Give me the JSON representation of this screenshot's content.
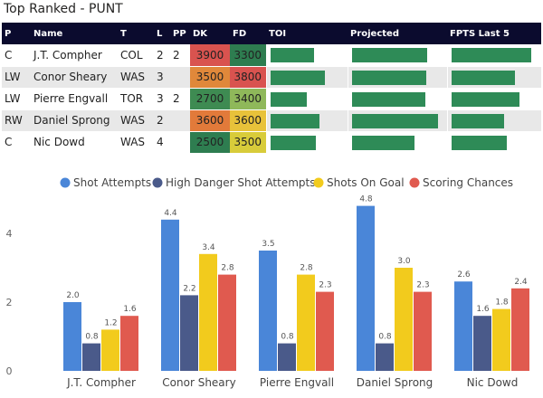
{
  "title": "Top Ranked - PUNT",
  "table": {
    "headers": [
      "P",
      "Name",
      "T",
      "L",
      "PP",
      "DK",
      "FD",
      "TOI",
      "Projected",
      "FPTS Last 5"
    ],
    "rows": [
      {
        "p": "C",
        "name": "J.T. Compher",
        "team": "COL",
        "line": "2",
        "pp": "2",
        "dk": "3900",
        "fd": "3300",
        "dk_color": "#d9534f",
        "fd_color": "#2e7d50",
        "toi": 0.56,
        "projected": 0.78,
        "fpts": 0.88
      },
      {
        "p": "LW",
        "name": "Conor Sheary",
        "team": "WAS",
        "line": "3",
        "pp": "",
        "dk": "3500",
        "fd": "3800",
        "dk_color": "#e0883a",
        "fd_color": "#d9534f",
        "toi": 0.7,
        "projected": 0.77,
        "fpts": 0.7
      },
      {
        "p": "LW",
        "name": "Pierre Engvall",
        "team": "TOR",
        "line": "3",
        "pp": "2",
        "dk": "2700",
        "fd": "3400",
        "dk_color": "#3e8b52",
        "fd_color": "#8fb85a",
        "toi": 0.46,
        "projected": 0.76,
        "fpts": 0.75
      },
      {
        "p": "RW",
        "name": "Daniel Sprong",
        "team": "WAS",
        "line": "2",
        "pp": "",
        "dk": "3600",
        "fd": "3600",
        "dk_color": "#e27a3a",
        "fd_color": "#e8c23a",
        "toi": 0.63,
        "projected": 0.9,
        "fpts": 0.58
      },
      {
        "p": "C",
        "name": "Nic Dowd",
        "team": "WAS",
        "line": "4",
        "pp": "",
        "dk": "2500",
        "fd": "3500",
        "dk_color": "#2e7d50",
        "fd_color": "#d8cc3a",
        "toi": 0.58,
        "projected": 0.65,
        "fpts": 0.61
      }
    ]
  },
  "colors": {
    "shot_attempts": "#4a86d8",
    "high_danger": "#4a5a8a",
    "shots_on_goal": "#f2cb1d",
    "scoring_chances": "#e05a4f"
  },
  "chart_data": {
    "type": "bar",
    "categories": [
      "J.T. Compher",
      "Conor Sheary",
      "Pierre Engvall",
      "Daniel Sprong",
      "Nic Dowd"
    ],
    "series": [
      {
        "name": "Shot Attempts",
        "values": [
          2.0,
          4.4,
          3.5,
          4.8,
          2.6
        ]
      },
      {
        "name": "High Danger Shot Attempts",
        "values": [
          0.8,
          2.2,
          0.8,
          0.8,
          1.6
        ]
      },
      {
        "name": "Shots On Goal",
        "values": [
          1.2,
          3.4,
          2.8,
          3.0,
          1.8
        ]
      },
      {
        "name": "Scoring Chances",
        "values": [
          1.6,
          2.8,
          2.3,
          2.3,
          2.4
        ]
      }
    ],
    "ylim": [
      0,
      5
    ],
    "yticks": [
      "0",
      "2",
      "4"
    ],
    "title": "",
    "xlabel": "",
    "ylabel": "",
    "legend_position": "top"
  }
}
